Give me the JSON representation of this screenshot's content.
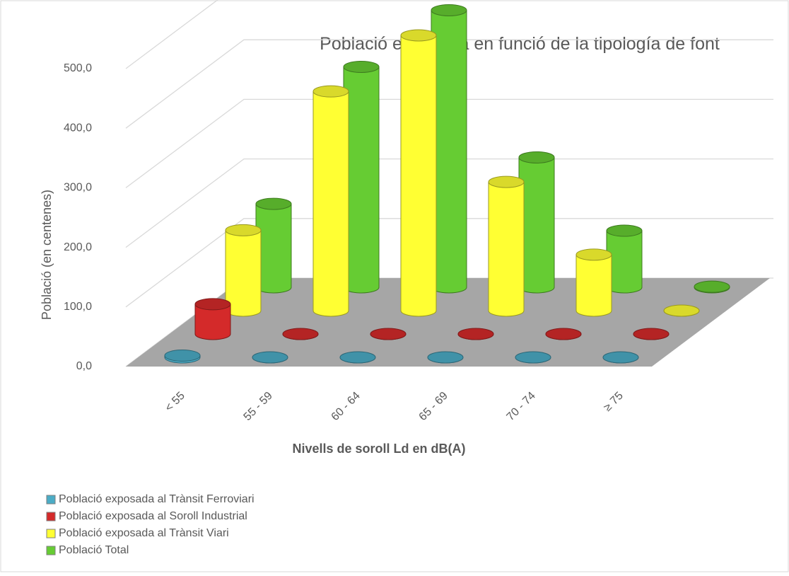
{
  "chart_data": {
    "type": "bar3d",
    "title": "Població exposada en funció de la tipología de font",
    "x_label": "Nivells de soroll Ld en dB(A)",
    "y_label": "Població (en centenes)",
    "categories": [
      "< 55",
      "55 - 59",
      "60 - 64",
      "65 - 69",
      "70 - 74",
      "≥ 75"
    ],
    "series": [
      {
        "name": "Població exposada al Trànsit Ferroviari",
        "color": "#4bacc6",
        "values": [
          3,
          0,
          0,
          0,
          0,
          0
        ]
      },
      {
        "name": "Població exposada al Soroll Industrial",
        "color": "#d42a2a",
        "values": [
          50,
          0,
          0,
          0,
          0,
          0
        ]
      },
      {
        "name": "Població exposada al Trànsit Viari",
        "color": "#ffff33",
        "values": [
          135,
          368,
          462,
          216,
          94,
          0
        ]
      },
      {
        "name": "Població Total",
        "color": "#66cc33",
        "values": [
          140,
          370,
          465,
          218,
          95,
          1
        ]
      }
    ],
    "ylim": [
      0,
      500
    ],
    "yticks": [
      {
        "value": 0,
        "label": "0,0"
      },
      {
        "value": 100,
        "label": "100,0"
      },
      {
        "value": 200,
        "label": "200,0"
      },
      {
        "value": 300,
        "label": "300,0"
      },
      {
        "value": 400,
        "label": "400,0"
      },
      {
        "value": 500,
        "label": "500,0"
      }
    ],
    "grid": true,
    "legend": "bottom-left"
  }
}
